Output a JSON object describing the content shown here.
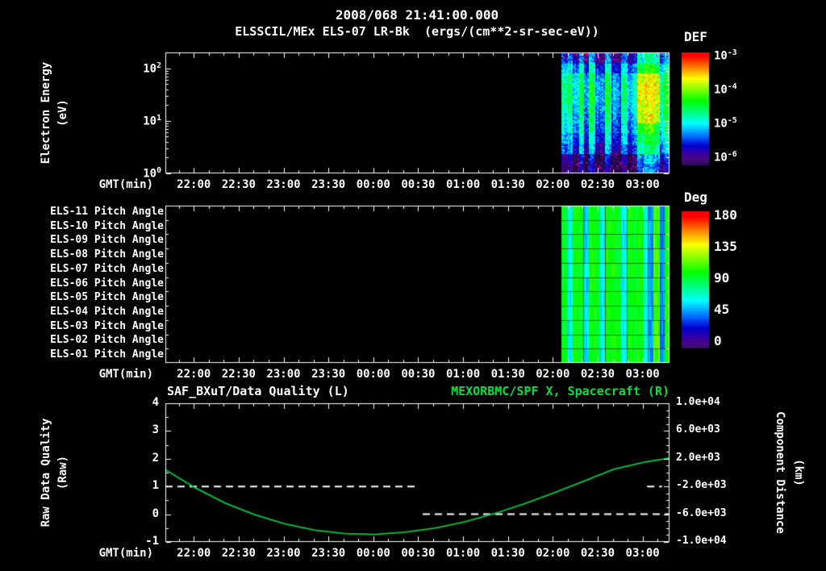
{
  "header": {
    "title": "2008/068 21:41:00.000",
    "subtitle": "ELSSCIL/MEx ELS-07 LR-Bk  (ergs/(cm**2-sr-sec-eV))"
  },
  "time_axis": {
    "label": "GMT(min)",
    "start_min": 0,
    "end_min": 337,
    "minor_step_min": 10,
    "ticks": [
      {
        "t": 19,
        "label": "22:00"
      },
      {
        "t": 49,
        "label": "22:30"
      },
      {
        "t": 79,
        "label": "23:00"
      },
      {
        "t": 109,
        "label": "23:30"
      },
      {
        "t": 139,
        "label": "00:00"
      },
      {
        "t": 169,
        "label": "00:30"
      },
      {
        "t": 199,
        "label": "01:00"
      },
      {
        "t": 229,
        "label": "01:30"
      },
      {
        "t": 259,
        "label": "02:00"
      },
      {
        "t": 289,
        "label": "02:30"
      },
      {
        "t": 319,
        "label": "03:00"
      }
    ]
  },
  "spectrogram_panel": {
    "ylabel_lines": [
      "Electron Energy",
      "(eV)"
    ],
    "y_log_range": [
      0,
      2.3
    ],
    "yticks": [
      {
        "log": 2,
        "base": "10",
        "exp": "2"
      },
      {
        "log": 1,
        "base": "10",
        "exp": "1"
      },
      {
        "log": 0,
        "base": "10",
        "exp": "0"
      }
    ]
  },
  "def_colorbar": {
    "title": "DEF",
    "value_log_range": [
      -6,
      -3
    ],
    "bar_log_range": [
      -6.25,
      -2.9
    ],
    "ticks": [
      {
        "log": -3,
        "base": "10",
        "exp": "-3"
      },
      {
        "log": -4,
        "base": "10",
        "exp": "-4"
      },
      {
        "log": -5,
        "base": "10",
        "exp": "-5"
      },
      {
        "log": -6,
        "base": "10",
        "exp": "-6"
      }
    ]
  },
  "pitch_panel": {
    "row_labels": [
      "ELS-11 Pitch Angle",
      "ELS-10 Pitch Angle",
      "ELS-09 Pitch Angle",
      "ELS-08 Pitch Angle",
      "ELS-07 Pitch Angle",
      "ELS-06 Pitch Angle",
      "ELS-05 Pitch Angle",
      "ELS-04 Pitch Angle",
      "ELS-03 Pitch Angle",
      "ELS-02 Pitch Angle",
      "ELS-01 Pitch Angle"
    ]
  },
  "deg_colorbar": {
    "title": "Deg",
    "bar_range": [
      -9,
      187
    ],
    "ticks": [
      180,
      135,
      90,
      45,
      0
    ]
  },
  "bottom_panel": {
    "title_left": "SAF_BXuT/Data Quality (L)",
    "title_right": "MEXORBMC/SPF X, Spacecraft (R)",
    "title_right_color": "#00e040",
    "ylabel_left_lines": [
      "Raw Data Quality",
      "(Raw)"
    ],
    "ylabel_right_lines": [
      "Component Distance",
      "(km)"
    ],
    "left_range": [
      -1,
      4
    ],
    "left_ticks": [
      4,
      3,
      2,
      1,
      0,
      -1
    ],
    "right_range": [
      -10000,
      10000
    ],
    "right_ticks": [
      {
        "v": 10000,
        "label": "1.0e+04"
      },
      {
        "v": 6000,
        "label": "6.0e+03"
      },
      {
        "v": 2000,
        "label": "2.0e+03"
      },
      {
        "v": -2000,
        "label": "-2.0e+03"
      },
      {
        "v": -6000,
        "label": "-6.0e+03"
      },
      {
        "v": -10000,
        "label": "-1.0e+04"
      }
    ]
  },
  "chart_data": [
    {
      "type": "heatmap",
      "name": "electron_energy_spectrogram",
      "title": "ELSSCIL/MEx ELS-07 LR-Bk",
      "units": "ergs/(cm**2-sr-sec-eV)",
      "x_start_min": 265,
      "x_end_min": 337,
      "y_log_range": [
        0,
        2.3
      ],
      "value_log_range": [
        -6,
        -3
      ],
      "rows_top_to_bottom": [
        [
          -5.6,
          -5.3,
          -5.9,
          -5.2,
          -6.0,
          -5.3,
          -6.0,
          -6.1,
          -5.3,
          -6.0,
          -6.1,
          -5.4,
          -6.0,
          -5.6,
          -5.0,
          -4.7,
          -4.6,
          -4.9,
          -5.5,
          -5.1
        ],
        [
          -5.2,
          -4.9,
          -5.5,
          -4.8,
          -5.6,
          -4.9,
          -5.6,
          -5.7,
          -4.9,
          -5.6,
          -5.7,
          -5.0,
          -5.6,
          -5.2,
          -4.6,
          -4.3,
          -4.2,
          -4.5,
          -5.1,
          -4.7
        ],
        [
          -4.9,
          -4.6,
          -5.2,
          -4.5,
          -5.3,
          -4.6,
          -5.3,
          -5.4,
          -4.6,
          -5.3,
          -5.4,
          -4.7,
          -5.3,
          -4.9,
          -3.9,
          -3.6,
          -3.6,
          -3.8,
          -4.8,
          -4.4
        ],
        [
          -4.8,
          -4.5,
          -5.1,
          -4.4,
          -5.2,
          -4.5,
          -5.2,
          -5.3,
          -4.5,
          -5.2,
          -5.3,
          -4.6,
          -5.2,
          -4.8,
          -3.8,
          -3.6,
          -3.6,
          -3.7,
          -4.7,
          -4.3
        ],
        [
          -4.8,
          -4.5,
          -5.1,
          -4.4,
          -5.2,
          -4.5,
          -5.2,
          -5.3,
          -4.5,
          -5.2,
          -5.3,
          -4.6,
          -5.2,
          -4.8,
          -3.8,
          -3.6,
          -3.6,
          -3.7,
          -4.7,
          -4.3
        ],
        [
          -4.9,
          -4.6,
          -5.2,
          -4.5,
          -5.3,
          -4.6,
          -5.3,
          -5.4,
          -4.6,
          -5.3,
          -5.4,
          -4.7,
          -5.3,
          -4.9,
          -3.9,
          -3.7,
          -3.7,
          -3.8,
          -4.8,
          -4.4
        ],
        [
          -5.0,
          -4.7,
          -5.3,
          -4.6,
          -5.4,
          -4.7,
          -5.4,
          -5.5,
          -4.7,
          -5.4,
          -5.5,
          -4.8,
          -5.4,
          -5.0,
          -4.0,
          -3.7,
          -3.6,
          -3.9,
          -4.9,
          -4.5
        ],
        [
          -5.1,
          -4.8,
          -5.4,
          -4.7,
          -5.5,
          -4.8,
          -5.5,
          -5.6,
          -4.8,
          -5.5,
          -5.6,
          -4.9,
          -5.5,
          -5.1,
          -4.5,
          -4.2,
          -4.1,
          -4.4,
          -5.0,
          -4.6
        ],
        [
          -5.3,
          -5.0,
          -5.6,
          -4.9,
          -5.7,
          -5.0,
          -5.7,
          -5.8,
          -5.0,
          -5.7,
          -5.8,
          -5.1,
          -5.7,
          -5.3,
          -4.7,
          -4.4,
          -4.3,
          -4.6,
          -5.2,
          -4.8
        ],
        [
          -5.5,
          -5.2,
          -5.8,
          -5.1,
          -5.9,
          -5.2,
          -5.9,
          -6.0,
          -5.2,
          -5.9,
          -6.0,
          -5.3,
          -5.9,
          -5.5,
          -4.9,
          -4.6,
          -4.5,
          -4.8,
          -5.4,
          -5.0
        ],
        [
          -6.0,
          -5.7,
          -6.3,
          -5.6,
          -6.4,
          -5.7,
          -6.4,
          -6.4,
          -5.7,
          -6.4,
          -6.4,
          -5.8,
          -6.4,
          -6.0,
          -5.4,
          -5.1,
          -5.0,
          -5.3,
          -5.9,
          -5.5
        ],
        [
          -6.2,
          -5.9,
          -6.4,
          -5.8,
          -6.4,
          -5.9,
          -6.4,
          -6.4,
          -5.9,
          -6.4,
          -6.4,
          -6.0,
          -6.4,
          -6.2,
          -5.6,
          -5.3,
          -5.2,
          -5.5,
          -6.1,
          -5.7
        ]
      ]
    },
    {
      "type": "heatmap",
      "name": "pitch_angle_heatmap",
      "title": "ELS-01..ELS-11 Pitch Angle",
      "units": "Deg",
      "x_start_min": 265,
      "x_end_min": 337,
      "value_range_deg": [
        0,
        180
      ],
      "columns_deg": [
        95,
        60,
        100,
        95,
        55,
        100,
        95,
        60,
        100,
        100,
        95,
        60,
        100,
        95,
        100,
        65,
        45,
        110,
        40,
        100
      ]
    },
    {
      "type": "line",
      "name": "spacecraft_x_distance",
      "label": "MEXORBMC/SPF X, Spacecraft (R)",
      "axis": "right",
      "color": "#00c840",
      "points_min_km": [
        [
          0,
          400
        ],
        [
          20,
          -2200
        ],
        [
          40,
          -4400
        ],
        [
          60,
          -6100
        ],
        [
          80,
          -7400
        ],
        [
          100,
          -8300
        ],
        [
          120,
          -8800
        ],
        [
          140,
          -8900
        ],
        [
          160,
          -8600
        ],
        [
          180,
          -8000
        ],
        [
          200,
          -7100
        ],
        [
          220,
          -5900
        ],
        [
          240,
          -4500
        ],
        [
          260,
          -2900
        ],
        [
          280,
          -1200
        ],
        [
          300,
          500
        ],
        [
          320,
          1500
        ],
        [
          337,
          2100
        ]
      ]
    },
    {
      "type": "line",
      "name": "raw_data_quality",
      "label": "SAF_BXuT/Data Quality (L)",
      "axis": "left",
      "color": "#ffffff",
      "style": "dashed",
      "segments": [
        {
          "from_min": 0,
          "to_min": 169,
          "value": 1
        },
        {
          "from_min": 172,
          "to_min": 337,
          "value": 0
        },
        {
          "from_min": 322,
          "to_min": 332,
          "value": 1
        }
      ]
    }
  ]
}
